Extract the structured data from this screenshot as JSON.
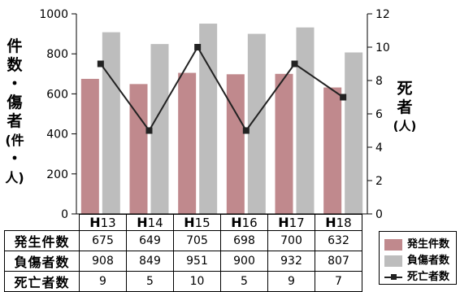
{
  "chart_data": {
    "type": "bar",
    "categories": [
      "13",
      "14",
      "15",
      "16",
      "17",
      "18"
    ],
    "category_prefix": "H",
    "series": [
      {
        "name": "発生件数",
        "values": [
          675,
          649,
          705,
          698,
          700,
          632
        ],
        "axis": "left",
        "color": "#c0898d"
      },
      {
        "name": "負傷者数",
        "values": [
          908,
          849,
          951,
          900,
          932,
          807
        ],
        "axis": "left",
        "color": "#bdbdbd"
      },
      {
        "name": "死亡者数",
        "values": [
          9,
          5,
          10,
          5,
          9,
          7
        ],
        "axis": "right",
        "type": "line",
        "color": "#222222"
      }
    ],
    "ylabel_left": [
      "件",
      "数",
      "・",
      "傷",
      "者",
      "(件",
      "・",
      "人)"
    ],
    "ylabel_right": [
      "死",
      "者",
      "(人)"
    ],
    "ylim_left": [
      0,
      1000
    ],
    "ylim_right": [
      0,
      12
    ],
    "yticks_left": [
      "0",
      "200",
      "400",
      "600",
      "800",
      "1000"
    ],
    "yticks_right": [
      "0",
      "2",
      "4",
      "6",
      "8",
      "10",
      "12"
    ],
    "legend_position": "bottom-right"
  },
  "table": {
    "rows": [
      {
        "label": "発生件数",
        "values": [
          "675",
          "649",
          "705",
          "698",
          "700",
          "632"
        ]
      },
      {
        "label": "負傷者数",
        "values": [
          "908",
          "849",
          "951",
          "900",
          "932",
          "807"
        ]
      },
      {
        "label": "死亡者数",
        "values": [
          "9",
          "5",
          "10",
          "5",
          "9",
          "7"
        ]
      }
    ]
  },
  "legend": {
    "items": [
      "発生件数",
      "負傷者数",
      "死亡者数"
    ]
  }
}
